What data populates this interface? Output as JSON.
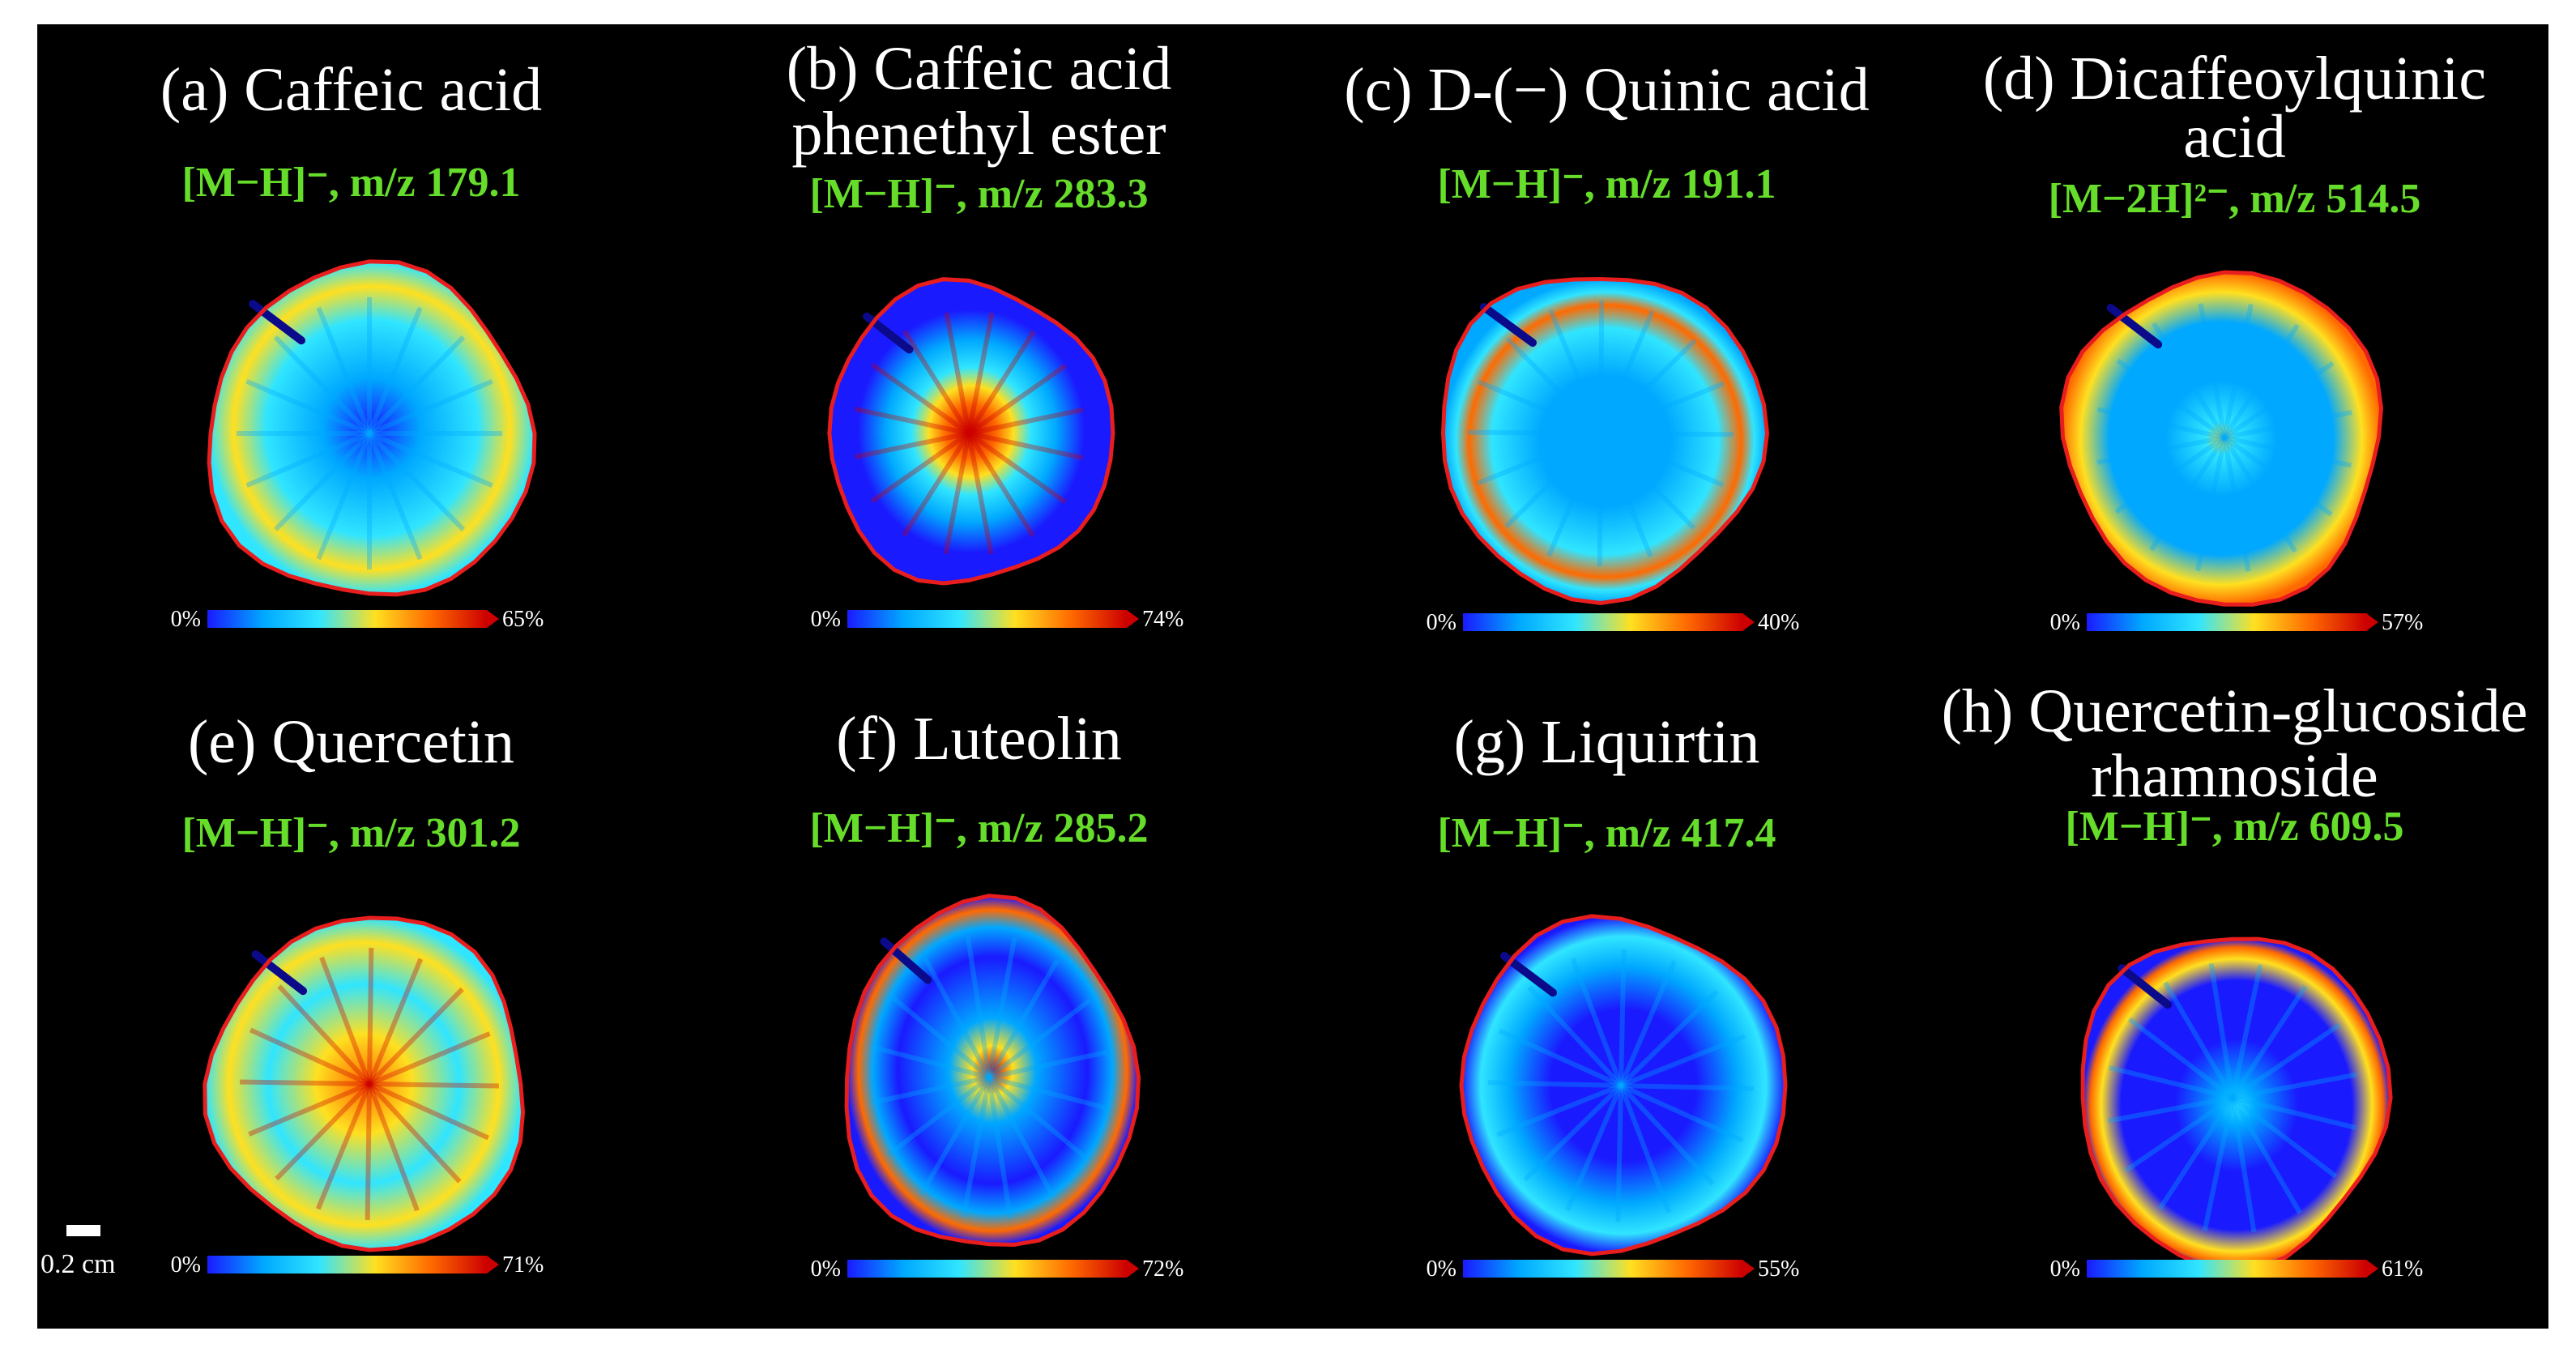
{
  "colorscale": [
    "#1a1aff",
    "#00a8ff",
    "#30e5ff",
    "#ffe020",
    "#ff6a00",
    "#cc0000"
  ],
  "outline_color": "#e81d1d",
  "ion_color": "#66dd2a",
  "scale_bar": {
    "label": "0.2 cm"
  },
  "panels": [
    {
      "title": [
        "(a) Caffeic acid"
      ],
      "ion": "[M−H]⁻, m/z 179.1",
      "cbar_min": "0%",
      "cbar_max": "65%"
    },
    {
      "title": [
        "(b) Caffeic acid",
        "phenethyl ester"
      ],
      "ion": "[M−H]⁻, m/z 283.3",
      "cbar_min": "0%",
      "cbar_max": "74%"
    },
    {
      "title": [
        "(c) D-(−) Quinic acid"
      ],
      "ion": "[M−H]⁻, m/z 191.1",
      "cbar_min": "0%",
      "cbar_max": "40%"
    },
    {
      "title": [
        "(d) Dicaffeoylquinic",
        "acid"
      ],
      "ion": "[M−2H]²⁻, m/z 514.5",
      "cbar_min": "0%",
      "cbar_max": "57%"
    },
    {
      "title": [
        "(e)  Quercetin"
      ],
      "ion": "[M−H]⁻, m/z 301.2",
      "cbar_min": "0%",
      "cbar_max": "71%"
    },
    {
      "title": [
        "(f) Luteolin"
      ],
      "ion": "[M−H]⁻, m/z 285.2",
      "cbar_min": "0%",
      "cbar_max": "72%"
    },
    {
      "title": [
        "(g) Liquirtin"
      ],
      "ion": "[M−H]⁻, m/z 417.4",
      "cbar_min": "0%",
      "cbar_max": "55%"
    },
    {
      "title": [
        "(h) Quercetin-glucoside",
        "rhamnoside"
      ],
      "ion": "[M−H]⁻, m/z 609.5",
      "cbar_min": "0%",
      "cbar_max": "61%"
    }
  ]
}
